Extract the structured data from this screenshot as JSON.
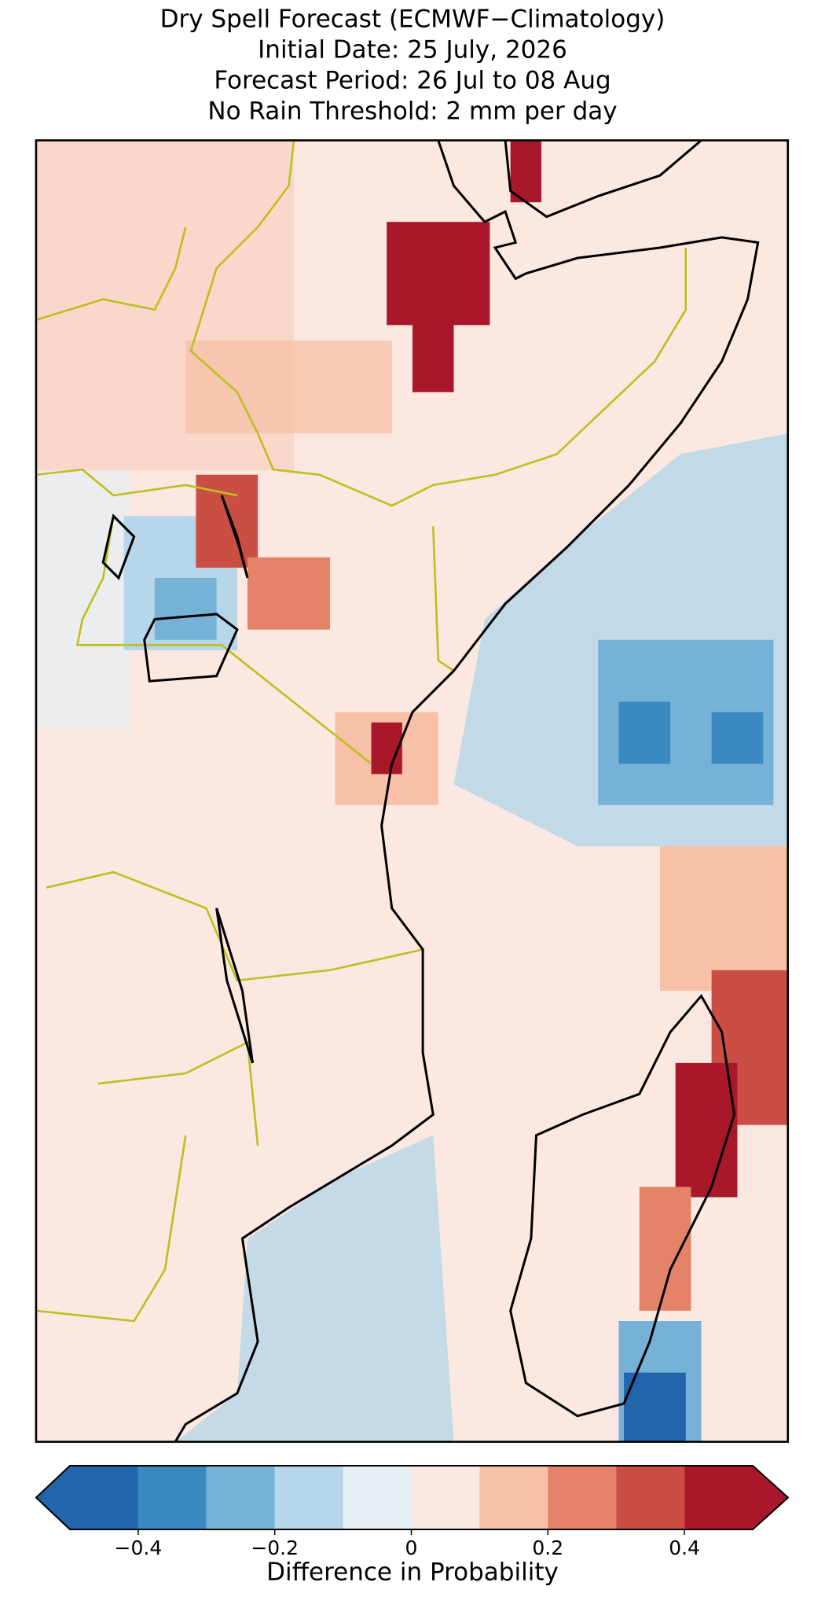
{
  "chart_data": {
    "type": "colorbar",
    "title": [
      "Dry Spell Forecast (ECMWF−Climatology)",
      "Initial Date: 25 July, 2026",
      "Forecast Period: 26 Jul to 08 Aug",
      "No Rain Threshold: 2 mm per day"
    ],
    "colorbar_label": "Difference in Probability",
    "levels": [
      -0.5,
      -0.4,
      -0.3,
      -0.2,
      -0.1,
      0,
      0.1,
      0.2,
      0.3,
      0.4,
      0.5
    ],
    "colors": [
      "#2166ac",
      "#3a89c0",
      "#76b2d7",
      "#b7d6e9",
      "#e5eef3",
      "#fbe8e0",
      "#f7c0a7",
      "#e58368",
      "#cb4e45",
      "#a9172a"
    ],
    "xlim": [
      -0.5,
      0.5
    ],
    "xticks": [
      {
        "value": -0.4,
        "label": "−0.4"
      },
      {
        "value": -0.2,
        "label": "−0.2"
      },
      0.0,
      0.2,
      0.4
    ],
    "extend": "both"
  }
}
